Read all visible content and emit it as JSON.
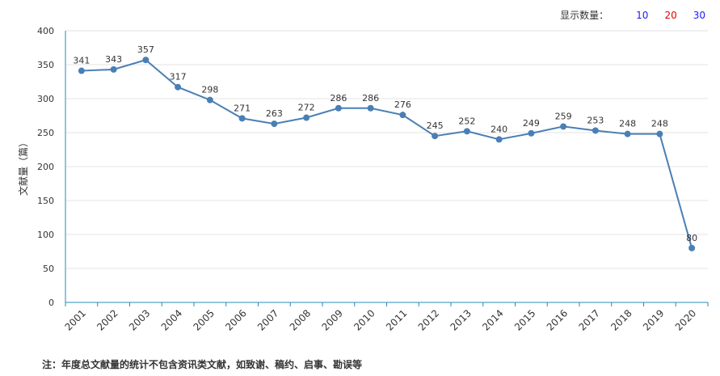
{
  "topbar": {
    "label": "显示数量：",
    "options": [
      {
        "label": "10",
        "color": "#1a1aff"
      },
      {
        "label": "20",
        "color": "#e60000"
      },
      {
        "label": "30",
        "color": "#1a1aff"
      }
    ]
  },
  "chart_data": {
    "type": "line",
    "title": "",
    "xlabel": "",
    "ylabel": "文献量（篇）",
    "x": [
      "2001",
      "2002",
      "2003",
      "2004",
      "2005",
      "2006",
      "2007",
      "2008",
      "2009",
      "2010",
      "2011",
      "2012",
      "2013",
      "2014",
      "2015",
      "2016",
      "2017",
      "2018",
      "2019",
      "2020"
    ],
    "series": [
      {
        "values": [
          341,
          343,
          357,
          317,
          298,
          271,
          263,
          272,
          286,
          286,
          276,
          245,
          252,
          240,
          249,
          259,
          253,
          248,
          248,
          80
        ]
      }
    ],
    "ylim": [
      0,
      400
    ],
    "yticks": [
      0,
      50,
      100,
      150,
      200,
      250,
      300,
      350,
      400
    ],
    "grid": true,
    "line_color": "#4a7fb5",
    "axis_color": "#2a8ab8"
  },
  "note": "注：年度总文献量的统计不包含资讯类文献，如致谢、稿约、启事、勘误等"
}
